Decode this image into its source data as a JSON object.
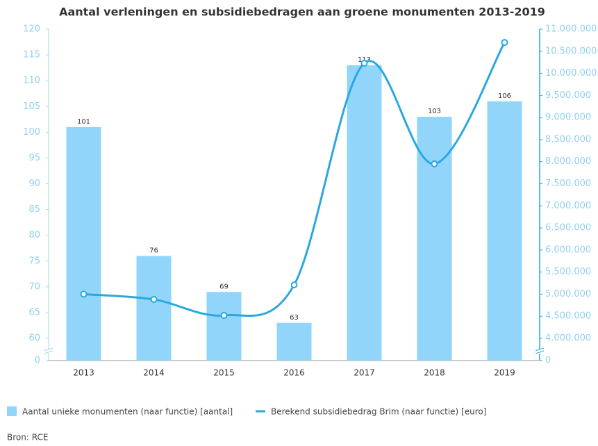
{
  "chart_data": {
    "type": "bar",
    "title": "Aantal verleningen en subsidiebedragen aan groene monumenten 2013-2019",
    "categories": [
      "2013",
      "2014",
      "2015",
      "2016",
      "2017",
      "2018",
      "2019"
    ],
    "series": [
      {
        "name": "Aantal unieke monumenten (naar functie) [aantal]",
        "type": "bar",
        "color": "#92d5fb",
        "values": [
          101,
          76,
          69,
          63,
          113,
          103,
          106
        ]
      },
      {
        "name": "Berekend subsidiebedrag Brim (naar functie) [euro]",
        "type": "line",
        "axis": "y2",
        "color": "#29a8e0",
        "values": [
          5000000,
          4880000,
          4520000,
          5210000,
          10230000,
          7950000,
          10700000
        ]
      }
    ],
    "ylim": [
      0,
      120
    ],
    "ybreak": [
      0,
      60
    ],
    "yticks": [
      0,
      60,
      65,
      70,
      75,
      80,
      85,
      90,
      95,
      100,
      105,
      110,
      115,
      120
    ],
    "y2lim": [
      0,
      11000000
    ],
    "y2break": [
      0,
      4000000
    ],
    "y2ticks": [
      0,
      {
        "value": 4000000,
        "label": "4.000.000"
      },
      {
        "value": 4500000,
        "label": "4.500.000"
      },
      {
        "value": 5000000,
        "label": "5.000.000"
      },
      {
        "value": 5500000,
        "label": "5.500.000"
      },
      {
        "value": 6000000,
        "label": "6.000.000"
      },
      {
        "value": 6500000,
        "label": "6.500.000"
      },
      {
        "value": 7000000,
        "label": "7.000.000"
      },
      {
        "value": 7500000,
        "label": "7.500.000"
      },
      {
        "value": 8000000,
        "label": "8.000.000"
      },
      {
        "value": 8500000,
        "label": "8.500.000"
      },
      {
        "value": 9000000,
        "label": "9.000.000"
      },
      {
        "value": 9500000,
        "label": "9.500.000"
      },
      {
        "value": 10000000,
        "label": "10.000.000"
      },
      {
        "value": 10500000,
        "label": "10.500.000"
      },
      {
        "value": 11000000,
        "label": "11.000.000"
      }
    ],
    "grid": false,
    "source": "Bron: RCE"
  }
}
